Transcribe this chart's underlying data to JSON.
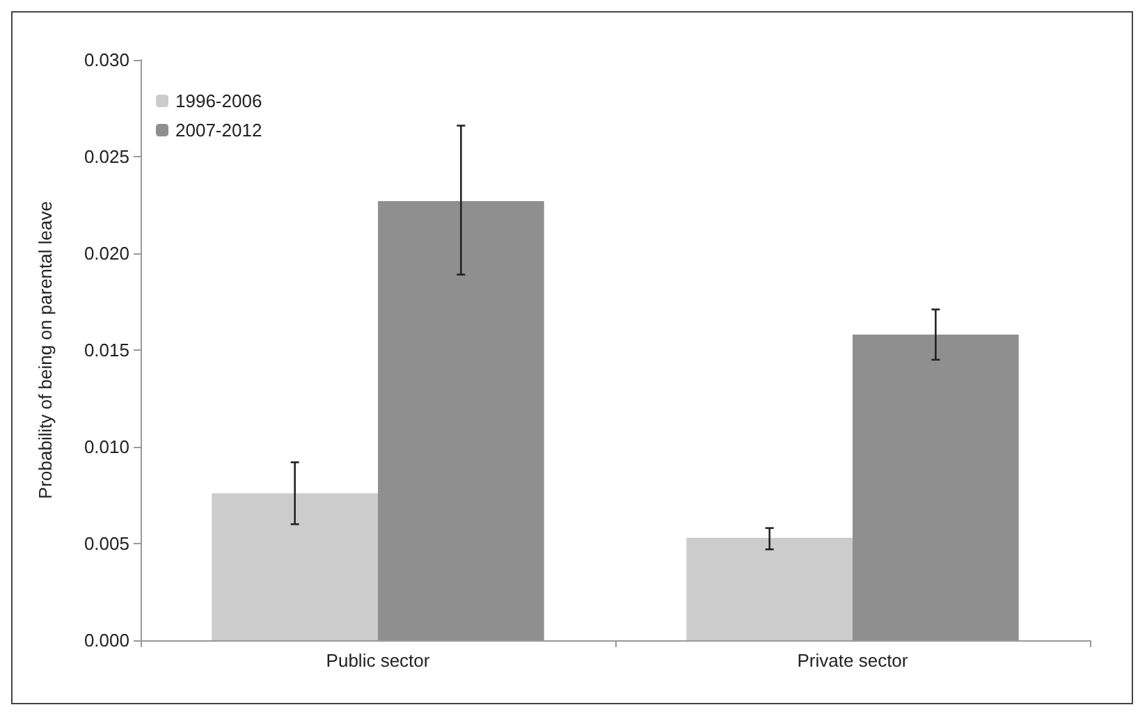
{
  "chart_data": {
    "type": "bar",
    "ylabel": "Probability of being on parental leave",
    "categories": [
      "Public sector",
      "Private sector"
    ],
    "series": [
      {
        "name": "1996-2006",
        "color": "#cccccc",
        "values": [
          0.0076,
          0.0053
        ],
        "errors": [
          [
            0.006,
            0.0092
          ],
          [
            0.0047,
            0.0058
          ]
        ]
      },
      {
        "name": "2007-2012",
        "color": "#8f8f8f",
        "values": [
          0.0227,
          0.0158
        ],
        "errors": [
          [
            0.0189,
            0.0266
          ],
          [
            0.0145,
            0.0171
          ]
        ]
      }
    ],
    "ylim": [
      0,
      0.03
    ],
    "yticks": [
      {
        "value": 0,
        "label": "0.000"
      },
      {
        "value": 0.005,
        "label": "0.005"
      },
      {
        "value": 0.01,
        "label": "0.010"
      },
      {
        "value": 0.015,
        "label": "0.015"
      },
      {
        "value": 0.02,
        "label": "0.020"
      },
      {
        "value": 0.025,
        "label": "0.025"
      },
      {
        "value": 0.03,
        "label": "0.030"
      }
    ],
    "grid": false,
    "legend": "top left"
  }
}
